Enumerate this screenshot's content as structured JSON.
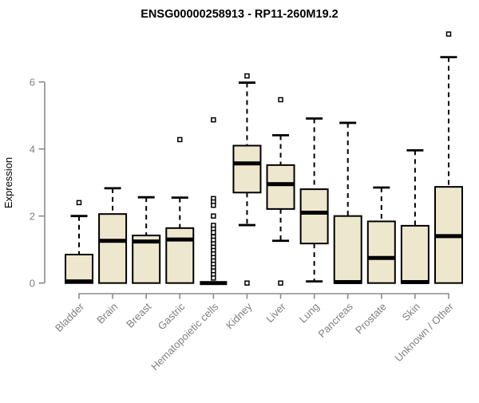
{
  "chart_data": {
    "type": "boxplot",
    "title": "ENSG00000258913 - RP11-260M19.2",
    "ylabel": "Expression",
    "xlabel": "",
    "yticks": [
      0,
      2,
      4,
      6
    ],
    "ylim": [
      0,
      7.5
    ],
    "grid": false,
    "legend": "none",
    "colors": {
      "box_fill": "#EDE7CE",
      "box_stroke": "#000000",
      "axis_line": "#8C8C8C",
      "tick_label": "#808080",
      "title": "#000000",
      "background": "#FFFFFF"
    },
    "categories": [
      "Bladder",
      "Brain",
      "Breast",
      "Gastric",
      "Hematopoietic cells",
      "Kidney",
      "Liver",
      "Lung",
      "Pancreas",
      "Prostate",
      "Skin",
      "Unknown / Other"
    ],
    "series": [
      {
        "category": "Bladder",
        "whisker_low": 0,
        "q1": 0,
        "median": 0.05,
        "q3": 0.85,
        "whisker_high": 2.0,
        "outliers": [
          2.4
        ]
      },
      {
        "category": "Brain",
        "whisker_low": 0,
        "q1": 0,
        "median": 1.26,
        "q3": 2.06,
        "whisker_high": 2.83,
        "outliers": []
      },
      {
        "category": "Breast",
        "whisker_low": 0,
        "q1": 0,
        "median": 1.24,
        "q3": 1.42,
        "whisker_high": 2.56,
        "outliers": []
      },
      {
        "category": "Gastric",
        "whisker_low": 0,
        "q1": 0,
        "median": 1.3,
        "q3": 1.64,
        "whisker_high": 2.55,
        "outliers": [
          4.28
        ]
      },
      {
        "category": "Hematopoietic cells",
        "whisker_low": 0,
        "q1": 0,
        "median": 0,
        "q3": 0,
        "whisker_high": 0,
        "outliers": [
          4.87,
          2.52,
          2.42,
          2.32,
          2.0,
          1.72,
          1.61,
          1.51,
          1.38,
          1.28,
          1.17,
          1.07,
          0.97,
          0.87,
          0.76,
          0.66,
          0.56,
          0.46,
          0.36,
          0.25,
          0.15
        ]
      },
      {
        "category": "Kidney",
        "whisker_low": 1.73,
        "q1": 2.7,
        "median": 3.57,
        "q3": 4.1,
        "whisker_high": 5.98,
        "outliers": [
          6.18,
          0
        ]
      },
      {
        "category": "Liver",
        "whisker_low": 1.26,
        "q1": 2.21,
        "median": 2.95,
        "q3": 3.52,
        "whisker_high": 4.41,
        "outliers": [
          5.47,
          0
        ]
      },
      {
        "category": "Lung",
        "whisker_low": 0.05,
        "q1": 1.18,
        "median": 2.1,
        "q3": 2.8,
        "whisker_high": 4.91,
        "outliers": []
      },
      {
        "category": "Pancreas",
        "whisker_low": 0,
        "q1": 0,
        "median": 0.03,
        "q3": 2.0,
        "whisker_high": 4.78,
        "outliers": []
      },
      {
        "category": "Prostate",
        "whisker_low": 0,
        "q1": 0,
        "median": 0.75,
        "q3": 1.84,
        "whisker_high": 2.85,
        "outliers": []
      },
      {
        "category": "Skin",
        "whisker_low": 0,
        "q1": 0,
        "median": 0.03,
        "q3": 1.71,
        "whisker_high": 3.96,
        "outliers": []
      },
      {
        "category": "Unknown / Other",
        "whisker_low": 0,
        "q1": 0,
        "median": 1.4,
        "q3": 2.87,
        "whisker_high": 6.74,
        "outliers": [
          7.43
        ]
      }
    ]
  }
}
